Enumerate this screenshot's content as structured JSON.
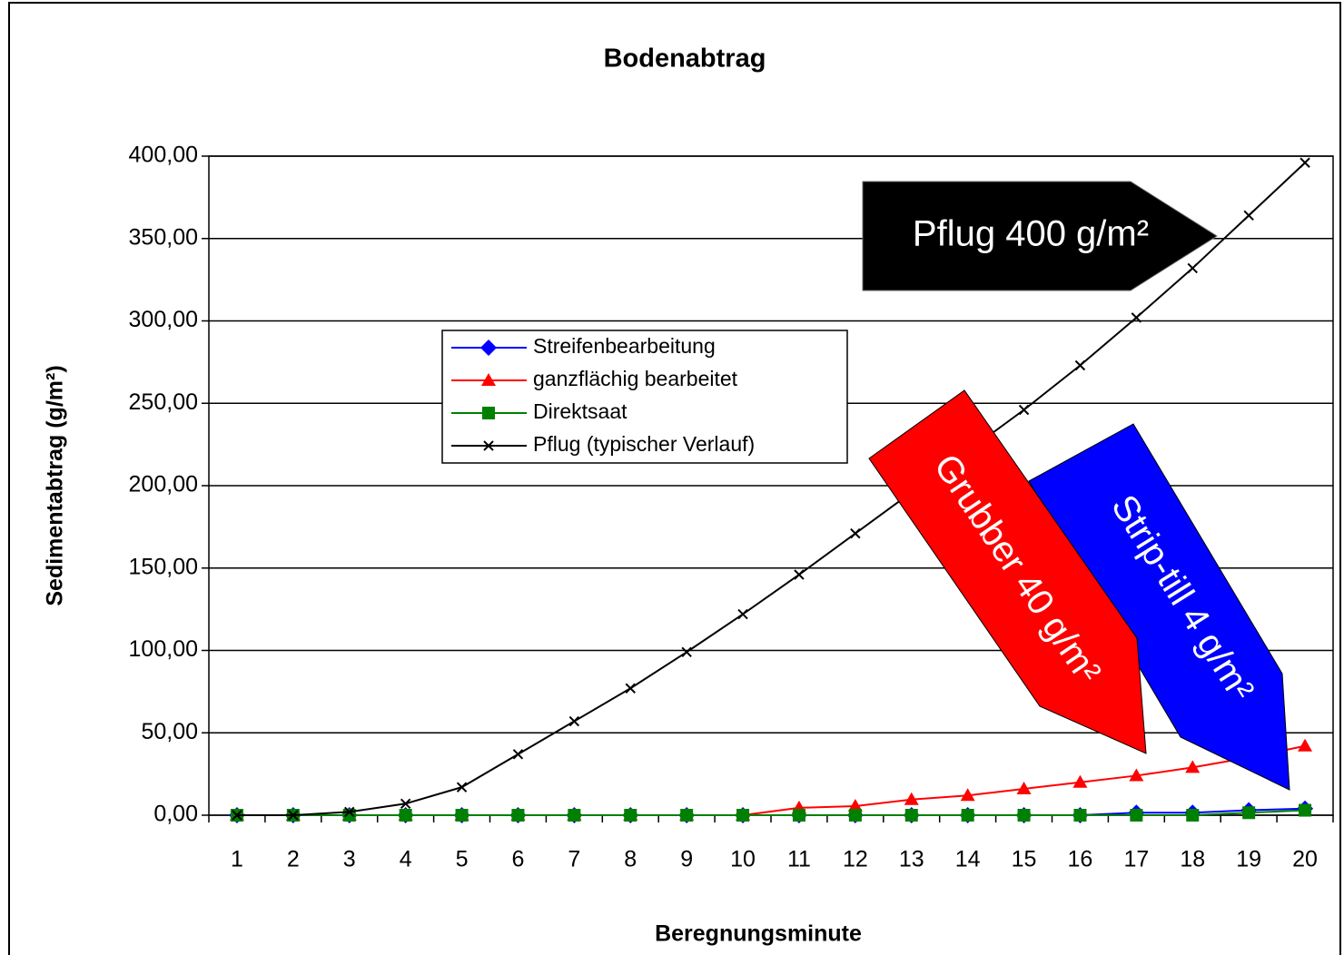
{
  "chart_data": {
    "type": "line",
    "title": "Bodenabtrag",
    "x_label": "Beregnungsminute",
    "y_label": "Sedimentabtrag (g/m²)",
    "categories": [
      "1",
      "2",
      "3",
      "4",
      "5",
      "6",
      "7",
      "8",
      "9",
      "10",
      "11",
      "12",
      "13",
      "14",
      "15",
      "16",
      "17",
      "18",
      "19",
      "20"
    ],
    "series": [
      {
        "name": "Streifenbearbeitung",
        "color": "#0000ff",
        "marker": "diamond",
        "values": [
          0,
          0,
          0,
          0,
          0,
          0,
          0,
          0,
          0,
          0,
          0,
          0,
          0,
          0,
          0,
          0,
          1.5,
          1.5,
          3,
          4
        ]
      },
      {
        "name": "ganzflächig bearbeitet",
        "color": "#ff0000",
        "marker": "triangle",
        "values": [
          0,
          0,
          0,
          0,
          0,
          0,
          0,
          0,
          0,
          0,
          4.5,
          5.5,
          9.5,
          12,
          16,
          20,
          24,
          29,
          35,
          42
        ]
      },
      {
        "name": "Direktsaat",
        "color": "#008000",
        "marker": "square",
        "values": [
          0,
          0,
          0,
          0,
          0,
          0,
          0,
          0,
          0,
          0,
          0,
          0,
          0,
          0,
          0,
          0,
          0,
          0,
          1.5,
          3
        ]
      },
      {
        "name": "Pflug (typischer Verlauf)",
        "color": "#000000",
        "marker": "x",
        "values": [
          0,
          0,
          2,
          7,
          17,
          37,
          57,
          77,
          99,
          122,
          146,
          171,
          196,
          221,
          246,
          273,
          302,
          332,
          364,
          396
        ]
      }
    ],
    "ylim": [
      0,
      400
    ],
    "yticks": [
      {
        "value": 0,
        "label": "0,00"
      },
      {
        "value": 50,
        "label": "50,00"
      },
      {
        "value": 100,
        "label": "100,00"
      },
      {
        "value": 150,
        "label": "150,00"
      },
      {
        "value": 200,
        "label": "200,00"
      },
      {
        "value": 250,
        "label": "250,00"
      },
      {
        "value": 300,
        "label": "300,00"
      },
      {
        "value": 350,
        "label": "350,00"
      },
      {
        "value": 400,
        "label": "400,00"
      }
    ],
    "grid": true,
    "annotations": [
      "Pflug 400 g/m²",
      "Grubber 40 g/m²",
      "Strip-till 4 g/m²"
    ]
  }
}
